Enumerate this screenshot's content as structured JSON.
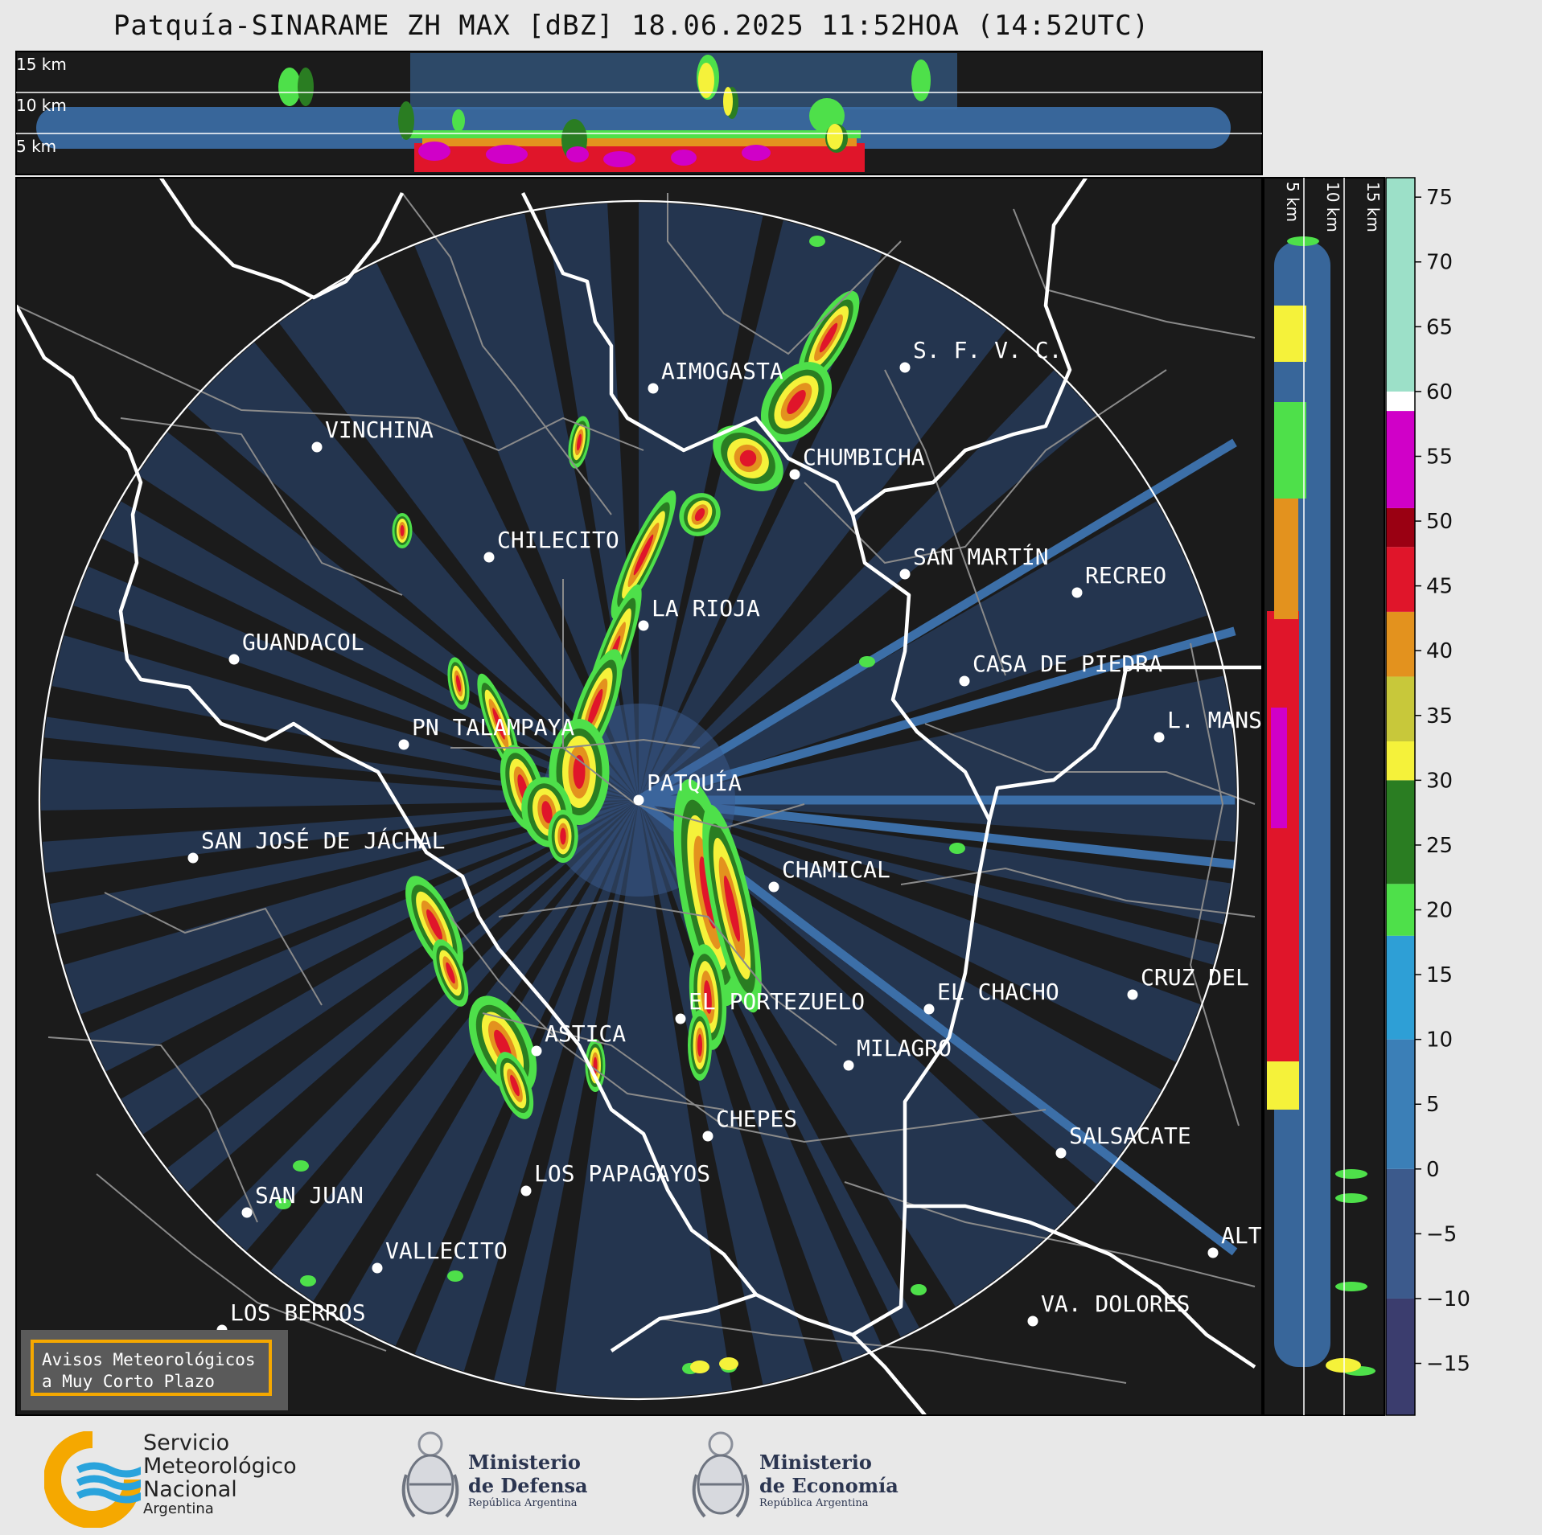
{
  "title": "Patquía-SINARAME ZH MAX [dBZ] 18.06.2025 11:52HOA (14:52UTC)",
  "top_profile_heights": [
    "15 km",
    "10 km",
    "5 km"
  ],
  "side_profile_heights": [
    "5 km",
    "10 km",
    "15 km"
  ],
  "colorbar": {
    "ticks": [
      "75",
      "70",
      "65",
      "60",
      "55",
      "50",
      "45",
      "40",
      "35",
      "30",
      "25",
      "20",
      "15",
      "10",
      "5",
      "0",
      "−5",
      "−10",
      "−15"
    ],
    "min": -19,
    "max": 76.5,
    "stops": [
      {
        "from": -19,
        "to": -10,
        "color": "#3b3d6e"
      },
      {
        "from": -10,
        "to": 0,
        "color": "#3c5a8c"
      },
      {
        "from": 0,
        "to": 10,
        "color": "#3b7fb7"
      },
      {
        "from": 10,
        "to": 18,
        "color": "#2e9fd6"
      },
      {
        "from": 18,
        "to": 22,
        "color": "#4ee04a"
      },
      {
        "from": 22,
        "to": 30,
        "color": "#2a7d22"
      },
      {
        "from": 30,
        "to": 33,
        "color": "#f5f23a"
      },
      {
        "from": 33,
        "to": 38,
        "color": "#c8c83a"
      },
      {
        "from": 38,
        "to": 43,
        "color": "#e3921e"
      },
      {
        "from": 43,
        "to": 48,
        "color": "#e0152a"
      },
      {
        "from": 48,
        "to": 51,
        "color": "#9a0012"
      },
      {
        "from": 51,
        "to": 58.5,
        "color": "#d000c8"
      },
      {
        "from": 58.5,
        "to": 60,
        "color": "#ffffff"
      },
      {
        "from": 60,
        "to": 76.5,
        "color": "#9ce0c8"
      }
    ]
  },
  "cities": [
    {
      "name": "AIMOGASTA"
    },
    {
      "name": "S. F. V. C."
    },
    {
      "name": "VINCHINA"
    },
    {
      "name": "CHUMBICHA"
    },
    {
      "name": "CHILECITO"
    },
    {
      "name": "SAN MARTÍN"
    },
    {
      "name": "RECREO"
    },
    {
      "name": "LA RIOJA"
    },
    {
      "name": "GUANDACOL"
    },
    {
      "name": "CASA DE PIEDRA"
    },
    {
      "name": "L. MANS"
    },
    {
      "name": "PN TALAMPAYA"
    },
    {
      "name": "PATQUÍA"
    },
    {
      "name": "SAN JOSÉ DE JÁCHAL"
    },
    {
      "name": "CHAMICAL"
    },
    {
      "name": "EL CHACHO"
    },
    {
      "name": "CRUZ DEL"
    },
    {
      "name": "EL PORTEZUELO"
    },
    {
      "name": "ASTICA"
    },
    {
      "name": "MILAGRO"
    },
    {
      "name": "CHEPES"
    },
    {
      "name": "SALSACATE"
    },
    {
      "name": "LOS PAPAGAYOS"
    },
    {
      "name": "SAN JUAN"
    },
    {
      "name": "ALT"
    },
    {
      "name": "VALLECITO"
    },
    {
      "name": "VA. DOLORES"
    },
    {
      "name": "LOS BERROS"
    }
  ],
  "avisos": {
    "line1": "Avisos Meteorológicos",
    "line2": "a Muy Corto Plazo"
  },
  "logos": {
    "smn": {
      "line1": "Servicio",
      "line2": "Meteorológico",
      "line3": "Nacional",
      "line4": "Argentina"
    },
    "defensa": {
      "line1": "Ministerio",
      "line2": "de Defensa",
      "line3": "República Argentina"
    },
    "economia": {
      "line1": "Ministerio",
      "line2": "de Economía",
      "line3": "República Argentina"
    }
  },
  "colors": {
    "background": "#e8e8e8",
    "map_bg": "#1b1b1b",
    "border_province": "#ffffff",
    "border_dept": "#8a8a8a",
    "echo_base": "#3c6fa8"
  }
}
